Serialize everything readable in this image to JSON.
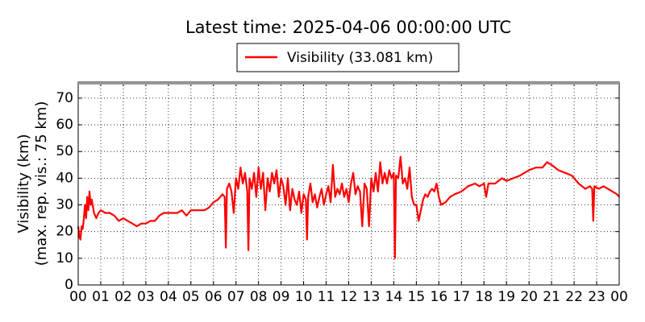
{
  "chart_data": {
    "type": "line",
    "title": "Latest time: 2025-04-06 00:00:00 UTC",
    "ylabel": [
      "Visibility (km)",
      "(max. rep. vis.: 75 km)"
    ],
    "x": [
      0.0,
      0.05,
      0.1,
      0.15,
      0.2,
      0.25,
      0.3,
      0.35,
      0.4,
      0.45,
      0.5,
      0.55,
      0.6,
      0.7,
      0.8,
      0.9,
      1.0,
      1.2,
      1.4,
      1.6,
      1.8,
      2.0,
      2.2,
      2.4,
      2.6,
      2.8,
      3.0,
      3.2,
      3.4,
      3.6,
      3.8,
      4.0,
      4.2,
      4.4,
      4.6,
      4.8,
      5.0,
      5.2,
      5.4,
      5.6,
      5.8,
      6.0,
      6.2,
      6.4,
      6.5,
      6.55,
      6.6,
      6.7,
      6.8,
      6.9,
      7.0,
      7.1,
      7.2,
      7.3,
      7.4,
      7.5,
      7.55,
      7.6,
      7.7,
      7.8,
      7.9,
      8.0,
      8.1,
      8.2,
      8.3,
      8.4,
      8.5,
      8.6,
      8.7,
      8.8,
      8.9,
      9.0,
      9.1,
      9.2,
      9.3,
      9.4,
      9.5,
      9.6,
      9.7,
      9.8,
      9.9,
      10.0,
      10.1,
      10.15,
      10.2,
      10.3,
      10.4,
      10.5,
      10.6,
      10.7,
      10.8,
      10.9,
      11.0,
      11.1,
      11.2,
      11.3,
      11.4,
      11.5,
      11.6,
      11.7,
      11.8,
      11.9,
      12.0,
      12.1,
      12.2,
      12.3,
      12.4,
      12.5,
      12.6,
      12.7,
      12.8,
      12.9,
      13.0,
      13.1,
      13.2,
      13.3,
      13.4,
      13.5,
      13.6,
      13.7,
      13.8,
      13.9,
      14.0,
      14.05,
      14.1,
      14.2,
      14.3,
      14.4,
      14.5,
      14.6,
      14.7,
      14.8,
      14.9,
      15.0,
      15.1,
      15.2,
      15.3,
      15.4,
      15.5,
      15.6,
      15.7,
      15.8,
      15.9,
      16.0,
      16.1,
      16.3,
      16.5,
      16.7,
      17.0,
      17.3,
      17.6,
      17.8,
      18.0,
      18.1,
      18.2,
      18.5,
      18.8,
      19.0,
      19.3,
      19.6,
      19.8,
      20.0,
      20.3,
      20.6,
      20.8,
      21.0,
      21.3,
      21.6,
      21.9,
      22.0,
      22.2,
      22.5,
      22.7,
      22.8,
      22.85,
      22.9,
      23.1,
      23.3,
      23.5,
      23.7,
      23.9,
      24.0
    ],
    "series": [
      {
        "name": "Visibility (33.081 km)",
        "color": "#ff0000",
        "values": [
          22,
          18,
          17,
          22,
          21,
          25,
          30,
          25,
          33,
          28,
          35,
          30,
          32,
          27,
          25,
          27,
          28,
          27,
          27,
          26,
          24,
          25,
          24,
          23,
          22,
          23,
          23,
          24,
          24,
          26,
          27,
          27,
          27,
          27,
          28,
          26,
          28,
          28,
          28,
          28,
          29,
          31,
          32,
          34,
          33,
          14,
          36,
          38,
          35,
          27,
          40,
          36,
          44,
          38,
          42,
          35,
          13,
          40,
          36,
          42,
          33,
          44,
          36,
          42,
          28,
          40,
          35,
          42,
          38,
          43,
          33,
          40,
          37,
          30,
          40,
          28,
          36,
          32,
          30,
          35,
          27,
          34,
          32,
          17,
          33,
          38,
          31,
          34,
          29,
          33,
          36,
          30,
          34,
          37,
          31,
          45,
          33,
          36,
          34,
          38,
          33,
          36,
          31,
          38,
          42,
          34,
          37,
          35,
          22,
          38,
          36,
          22,
          40,
          35,
          42,
          35,
          46,
          38,
          42,
          38,
          43,
          40,
          42,
          10,
          41,
          40,
          48,
          38,
          40,
          36,
          44,
          33,
          30,
          30,
          24,
          28,
          32,
          34,
          33,
          35,
          36,
          35,
          38,
          33,
          30,
          31,
          33,
          34,
          35,
          37,
          38,
          37,
          38,
          33,
          38,
          38,
          40,
          39,
          40,
          41,
          42,
          43,
          44,
          44,
          46,
          45,
          43,
          42,
          41,
          40,
          38,
          36,
          37,
          36,
          24,
          37,
          36,
          37,
          36,
          35,
          34,
          33
        ]
      }
    ],
    "xlim": [
      0,
      24
    ],
    "ylim": [
      0,
      76
    ],
    "xticks": [
      {
        "value": 0,
        "label": "00"
      },
      {
        "value": 1,
        "label": "01"
      },
      {
        "value": 2,
        "label": "02"
      },
      {
        "value": 3,
        "label": "03"
      },
      {
        "value": 4,
        "label": "04"
      },
      {
        "value": 5,
        "label": "05"
      },
      {
        "value": 6,
        "label": "06"
      },
      {
        "value": 7,
        "label": "07"
      },
      {
        "value": 8,
        "label": "08"
      },
      {
        "value": 9,
        "label": "09"
      },
      {
        "value": 10,
        "label": "10"
      },
      {
        "value": 11,
        "label": "11"
      },
      {
        "value": 12,
        "label": "12"
      },
      {
        "value": 13,
        "label": "13"
      },
      {
        "value": 14,
        "label": "14"
      },
      {
        "value": 15,
        "label": "15"
      },
      {
        "value": 16,
        "label": "16"
      },
      {
        "value": 17,
        "label": "17"
      },
      {
        "value": 18,
        "label": "18"
      },
      {
        "value": 19,
        "label": "19"
      },
      {
        "value": 20,
        "label": "20"
      },
      {
        "value": 21,
        "label": "21"
      },
      {
        "value": 22,
        "label": "22"
      },
      {
        "value": 23,
        "label": "23"
      },
      {
        "value": 24,
        "label": "00"
      }
    ],
    "yticks": [
      0,
      10,
      20,
      30,
      40,
      50,
      60,
      70
    ],
    "grid": true,
    "legend": "top"
  }
}
